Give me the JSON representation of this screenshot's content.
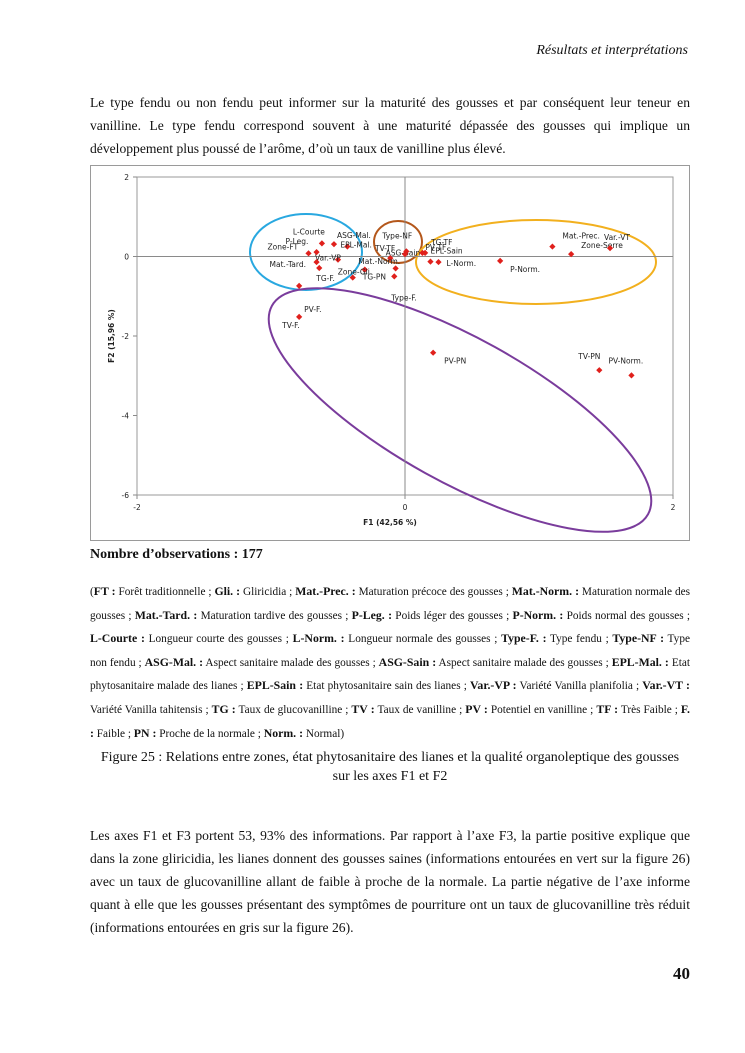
{
  "header": {
    "title": "Résultats et interprétations"
  },
  "paragraph_1": "Le type fendu ou non fendu peut informer sur la maturité des gousses et par conséquent leur teneur en vanilline. Le type fendu correspond souvent à une maturité dépassée des gousses qui implique un développement plus poussé de l’arôme, d’où un taux de vanilline plus élevé.",
  "chart_data": {
    "type": "scatter",
    "x_label": "F1 (42,56 %)",
    "y_label": "F2 (15,96 %)",
    "labels": [
      "L-Courte",
      "ASG-Mal.",
      "EPL-Mal.",
      "P-Leg.",
      "Zone-FT",
      "Var.-VP",
      "Mat.-Tard.",
      "TG-F.",
      "Zone-Gli.",
      "Mat.-Norm.",
      "TG-PN",
      "ASG-Sain",
      "Type-F.",
      "Type-NF",
      "TV-TF",
      "PV TF",
      "TG-TF",
      "EPL-Sain",
      "L-Norm.",
      "P-Norm.",
      "Mat.-Prec.",
      "Zone-Serre",
      "Var.-VT",
      "PV-F.",
      "TV-F.",
      "PV-PN",
      "TV-PN",
      "PV-Norm."
    ],
    "x": [
      -0.62,
      -0.53,
      -0.43,
      -0.66,
      -0.72,
      -0.5,
      -0.66,
      -0.64,
      -0.3,
      -0.11,
      -0.39,
      -0.07,
      -0.08,
      0.01,
      0.0,
      0.13,
      0.15,
      0.19,
      0.25,
      0.71,
      1.1,
      1.24,
      1.53,
      -0.79,
      -0.79,
      0.21,
      1.45,
      1.69
    ],
    "values": [
      0.33,
      0.31,
      0.25,
      0.11,
      0.08,
      -0.08,
      -0.14,
      -0.29,
      -0.33,
      -0.04,
      -0.53,
      -0.3,
      -0.5,
      0.13,
      0.06,
      0.09,
      0.09,
      -0.13,
      -0.14,
      -0.11,
      0.25,
      0.06,
      0.21,
      -0.74,
      -1.52,
      -2.42,
      -2.86,
      -2.99
    ],
    "color": "#e0201c",
    "xlim": [
      -2,
      2
    ],
    "xticks": [
      -2,
      0,
      2
    ],
    "ylim": [
      -6,
      2
    ],
    "yticks": [
      2,
      0,
      -2,
      -4,
      -6
    ]
  },
  "observations": "Nombre d’observations : 177",
  "glossary": {
    "open": "(",
    "items": [
      {
        "term": "FT :",
        "desc": " Forêt traditionnelle ; "
      },
      {
        "term": "Gli. :",
        "desc": " Gliricidia ; "
      },
      {
        "term": "Mat.-Prec. :",
        "desc": " Maturation précoce des gousses ; "
      },
      {
        "term": "Mat.-Norm. :",
        "desc": " Maturation normale des gousses ; "
      },
      {
        "term": "Mat.-Tard. :",
        "desc": " Maturation tardive des gousses ; "
      },
      {
        "term": "P-Leg. :",
        "desc": " Poids léger des gousses ; "
      },
      {
        "term": "P-Norm. :",
        "desc": " Poids normal des gousses ; "
      },
      {
        "term": "L-Courte :",
        "desc": " Longueur courte des gousses ; "
      },
      {
        "term": "L-Norm. :",
        "desc": " Longueur normale des gousses ; "
      },
      {
        "term": "Type-F. :",
        "desc": " Type fendu ; "
      },
      {
        "term": "Type-NF :",
        "desc": " Type non fendu ; "
      },
      {
        "term": "ASG-Mal. :",
        "desc": " Aspect sanitaire malade des gousses ; "
      },
      {
        "term": "ASG-Sain :",
        "desc": " Aspect sanitaire malade des gousses ; "
      },
      {
        "term": "EPL-Mal. :",
        "desc": " Etat phytosanitaire malade des lianes ; "
      },
      {
        "term": "EPL-Sain :",
        "desc": " Etat phytosanitaire sain des lianes ; "
      },
      {
        "term": "Var.-VP :",
        "desc": " Variété Vanilla planifolia ; "
      },
      {
        "term": "Var.-VT :",
        "desc": " Variété Vanilla tahitensis ; "
      },
      {
        "term": "TG :",
        "desc": " Taux de glucovanilline ; "
      },
      {
        "term": "TV :",
        "desc": " Taux de vanilline ; "
      },
      {
        "term": "PV :",
        "desc": " Potentiel en vanilline ; "
      },
      {
        "term": "TF :",
        "desc": " Très Faible ; "
      },
      {
        "term": "F. :",
        "desc": " Faible ; "
      },
      {
        "term": "PN :",
        "desc": " Proche de la normale ; "
      },
      {
        "term": "Norm. :",
        "desc": " Normal)"
      }
    ]
  },
  "caption": "Figure 25 : Relations entre zones, état phytosanitaire des lianes et la qualité organoleptique des gousses sur les axes F1 et F2",
  "paragraph_2": "Les axes F1 et F3 portent 53, 93% des informations. Par rapport à l’axe F3, la partie positive explique que dans la zone gliricidia, les lianes donnent des gousses saines (informations entourées en vert sur la figure 26) avec un taux de glucovanilline allant de faible à proche de la normale. La partie négative de l’axe informe quant à elle que les gousses présentant des symptômes de pourriture ont un taux de glucovanilline très réduit (informations entourées en gris sur la figure 26).",
  "page_number": "40"
}
